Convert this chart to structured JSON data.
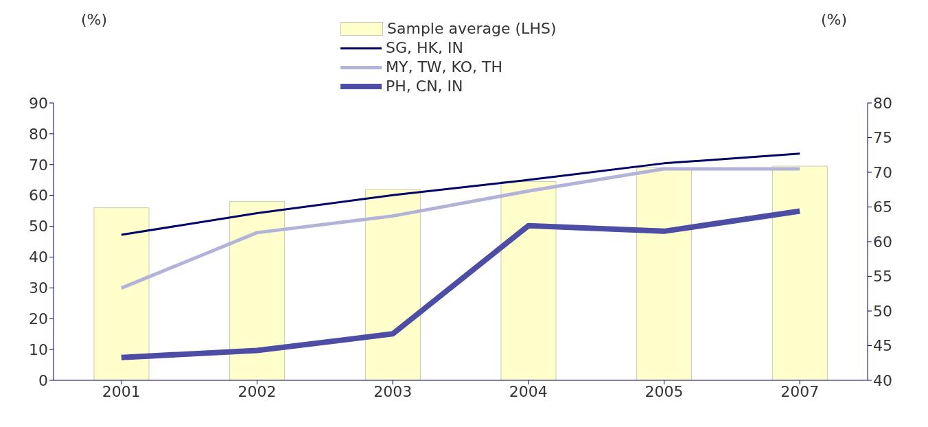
{
  "chart_data": {
    "type": "bar",
    "categories": [
      "2001",
      "2002",
      "2003",
      "2004",
      "2005",
      "2007"
    ],
    "ylabel": "(%)",
    "y2label": "(%)",
    "ylim": [
      0,
      90
    ],
    "yticks": [
      0,
      10,
      20,
      30,
      40,
      50,
      60,
      70,
      80,
      90
    ],
    "y2lim": [
      40,
      80
    ],
    "y2ticks": [
      40,
      45,
      50,
      55,
      60,
      65,
      70,
      75,
      80
    ],
    "legend": "top",
    "grid": false,
    "series": [
      {
        "name": "Sample average (LHS)",
        "color": "#ffffcc",
        "values": [
          56,
          58,
          62,
          64.5,
          69,
          69.5
        ]
      },
      {
        "name": "SG, HK, IN",
        "type": "line",
        "axis": "y2",
        "color": "#000066",
        "values": [
          61,
          64.1,
          66.7,
          68.9,
          71.3,
          72.7
        ]
      },
      {
        "name": "MY, TW, KO, TH",
        "type": "line",
        "axis": "y2",
        "color": "#b3b3d9",
        "values": [
          53.3,
          61.3,
          63.7,
          67.3,
          70.5,
          70.5
        ]
      },
      {
        "name": "PH, CN, IN",
        "type": "line",
        "axis": "y2",
        "color": "#4d4da6",
        "values": [
          43.3,
          44.3,
          46.7,
          62.3,
          61.5,
          64.4
        ]
      }
    ]
  }
}
